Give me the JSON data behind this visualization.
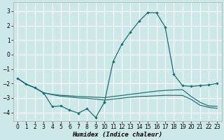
{
  "bg_color": "#cce8e8",
  "grid_color": "#ffffff",
  "line_color": "#1a7070",
  "xlabel": "Humidex (Indice chaleur)",
  "xlim": [
    -0.5,
    23.5
  ],
  "ylim": [
    -4.6,
    3.6
  ],
  "yticks": [
    -4,
    -3,
    -2,
    -1,
    0,
    1,
    2,
    3
  ],
  "xticks": [
    0,
    1,
    2,
    3,
    4,
    5,
    6,
    7,
    8,
    9,
    10,
    11,
    12,
    13,
    14,
    15,
    16,
    17,
    18,
    19,
    20,
    21,
    22,
    23
  ],
  "line_main_x": [
    0,
    1,
    2,
    3,
    4,
    5,
    6,
    7,
    8,
    9,
    10,
    11,
    12,
    13,
    14,
    15,
    16,
    17,
    18,
    19,
    20,
    21,
    22,
    23
  ],
  "line_main_y": [
    -1.65,
    -2.05,
    -2.3,
    -2.65,
    -3.6,
    -3.55,
    -3.85,
    -4.05,
    -3.75,
    -4.35,
    -3.3,
    null,
    null,
    null,
    null,
    null,
    null,
    null,
    null,
    null,
    null,
    null,
    null,
    null
  ],
  "line_peak_x": [
    10,
    11,
    12,
    13,
    14,
    15,
    16,
    17,
    18,
    19,
    20,
    21,
    22,
    23
  ],
  "line_peak_y": [
    -3.3,
    -0.5,
    0.7,
    1.55,
    2.3,
    2.9,
    2.88,
    1.9,
    -1.38,
    -2.15,
    -2.2,
    -2.15,
    -2.1,
    -2.0
  ],
  "line_flat1_x": [
    0,
    1,
    2,
    3,
    4,
    5,
    6,
    7,
    8,
    9,
    10,
    11,
    12,
    13,
    14,
    15,
    16,
    17,
    18,
    19,
    20,
    21,
    22,
    23
  ],
  "line_flat1_y": [
    -1.65,
    -2.05,
    -2.3,
    -2.65,
    -2.75,
    -2.82,
    -2.85,
    -2.9,
    -2.92,
    -2.95,
    -2.98,
    -2.9,
    -2.83,
    -2.75,
    -2.68,
    -2.6,
    -2.53,
    -2.48,
    -2.45,
    -2.43,
    -2.9,
    -3.3,
    -3.55,
    -3.58
  ],
  "line_flat2_x": [
    0,
    1,
    2,
    3,
    4,
    5,
    6,
    7,
    8,
    9,
    10,
    11,
    12,
    13,
    14,
    15,
    16,
    17,
    18,
    19,
    20,
    21,
    22,
    23
  ],
  "line_flat2_y": [
    -1.65,
    -2.05,
    -2.3,
    -2.65,
    -2.78,
    -2.88,
    -2.93,
    -3.0,
    -3.02,
    -3.08,
    -3.15,
    -3.08,
    -3.02,
    -2.95,
    -2.9,
    -2.88,
    -2.85,
    -2.82,
    -2.82,
    -2.83,
    -3.1,
    -3.5,
    -3.65,
    -3.72
  ]
}
